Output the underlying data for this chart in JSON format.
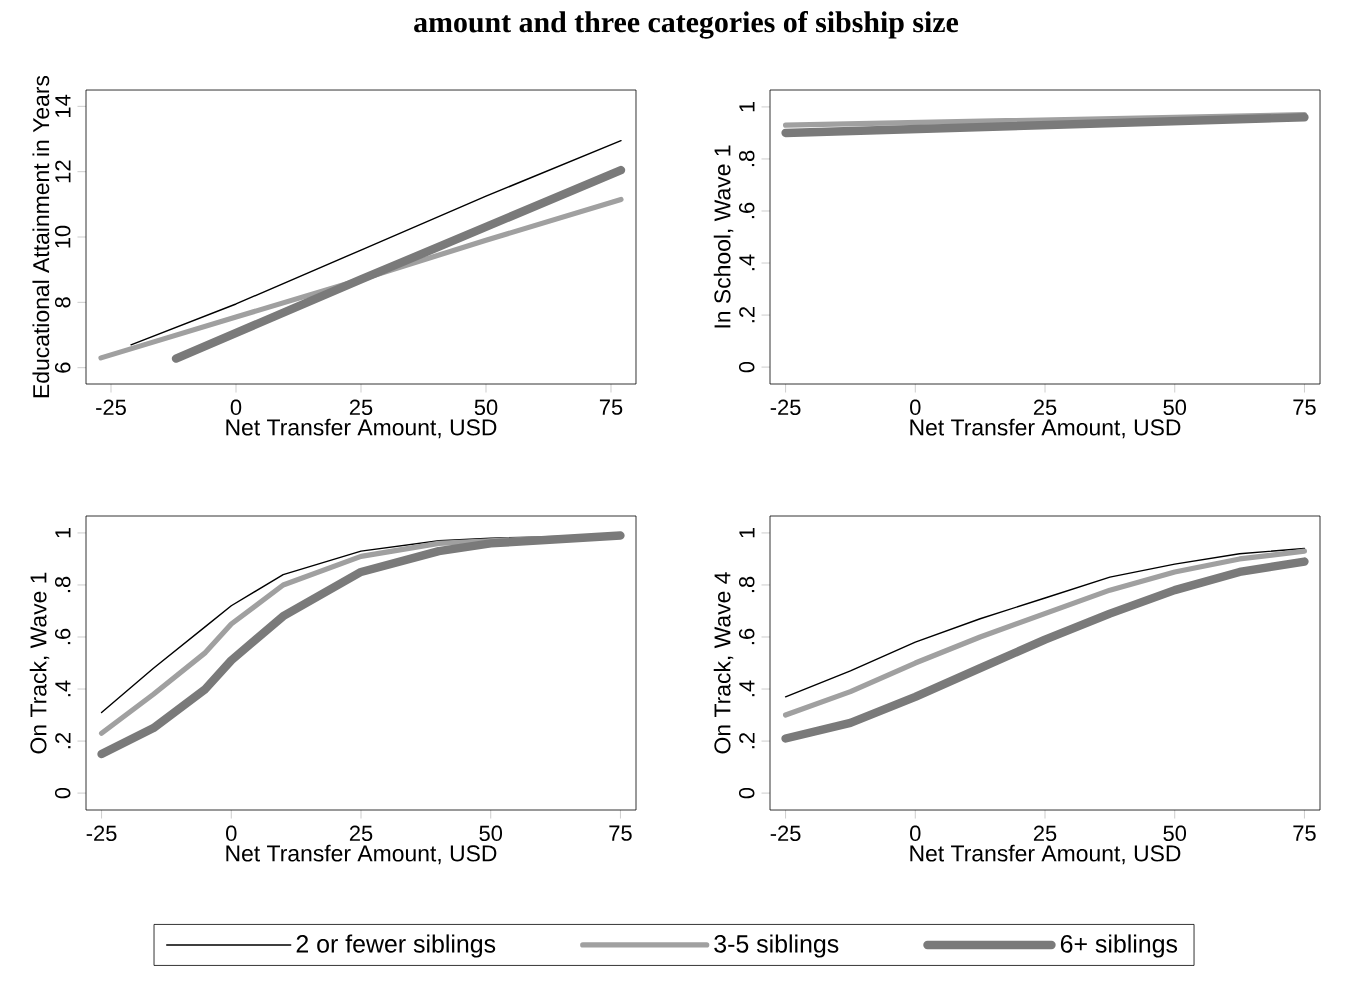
{
  "chart_data": [
    {
      "type": "line",
      "title": "amount and three categories of sibship size",
      "xlabel": "Net Transfer Amount, USD",
      "ylabel": "Educational Attainment in Years",
      "xlim": [
        -30,
        80
      ],
      "xticks": [
        -25,
        0,
        25,
        50,
        75
      ],
      "ylim": [
        5.5,
        14.5
      ],
      "yticks": [
        6,
        8,
        10,
        12,
        14
      ],
      "series": [
        {
          "color": "#000000",
          "x": [
            -21,
            0,
            25,
            50,
            77
          ],
          "values": [
            6.7,
            7.95,
            9.6,
            11.25,
            12.95
          ]
        },
        {
          "color": "#a0a0a0",
          "x": [
            -27,
            0,
            25,
            50,
            77
          ],
          "values": [
            6.3,
            7.55,
            8.7,
            9.9,
            11.15
          ]
        },
        {
          "color": "#7a7a7a",
          "x": [
            -12,
            25,
            77
          ],
          "values": [
            6.28,
            8.7,
            12.05
          ]
        }
      ]
    },
    {
      "type": "line",
      "xlabel": "Net Transfer Amount, USD",
      "ylabel": "In School, Wave 1",
      "xlim": [
        -28,
        78
      ],
      "xticks": [
        -25,
        0,
        25,
        50,
        75
      ],
      "ylim": [
        -0.065,
        1.065
      ],
      "yticks": [
        0,
        {
          "value": 0.2,
          "label": ".2"
        },
        {
          "value": 0.4,
          "label": ".4"
        },
        {
          "value": 0.6,
          "label": ".6"
        },
        {
          "value": 0.8,
          "label": ".8"
        },
        1
      ],
      "series": [
        {
          "color": "#a0a0a0",
          "x": [
            -25,
            75
          ],
          "values": [
            0.93,
            0.97
          ]
        },
        {
          "color": "#7a7a7a",
          "x": [
            -25,
            75
          ],
          "values": [
            0.9,
            0.96
          ]
        }
      ]
    },
    {
      "type": "line",
      "xlabel": "Net Transfer Amount, USD",
      "ylabel": "On Track, Wave 1",
      "xlim": [
        -28,
        78
      ],
      "xticks": [
        -25,
        0,
        25,
        50,
        75
      ],
      "ylim": [
        -0.065,
        1.065
      ],
      "yticks": [
        0,
        {
          "value": 0.2,
          "label": ".2"
        },
        {
          "value": 0.4,
          "label": ".4"
        },
        {
          "value": 0.6,
          "label": ".6"
        },
        {
          "value": 0.8,
          "label": ".8"
        },
        1
      ],
      "series": [
        {
          "color": "#000000",
          "x": [
            -25,
            -15,
            -5,
            0,
            10,
            25,
            40,
            50,
            75
          ],
          "values": [
            0.31,
            0.48,
            0.64,
            0.72,
            0.84,
            0.93,
            0.97,
            0.98,
            0.99
          ]
        },
        {
          "color": "#a0a0a0",
          "x": [
            -25,
            -15,
            -5,
            0,
            10,
            25,
            40,
            50,
            75
          ],
          "values": [
            0.23,
            0.38,
            0.54,
            0.65,
            0.8,
            0.91,
            0.96,
            0.97,
            0.99
          ]
        },
        {
          "color": "#7a7a7a",
          "x": [
            -25,
            -15,
            -5,
            0,
            10,
            25,
            40,
            50,
            75
          ],
          "values": [
            0.15,
            0.25,
            0.4,
            0.51,
            0.68,
            0.85,
            0.93,
            0.96,
            0.99
          ]
        }
      ]
    },
    {
      "type": "line",
      "xlabel": "Net Transfer Amount, USD",
      "ylabel": "On Track, Wave 4",
      "xlim": [
        -28,
        78
      ],
      "xticks": [
        -25,
        0,
        25,
        50,
        75
      ],
      "ylim": [
        -0.065,
        1.065
      ],
      "yticks": [
        0,
        {
          "value": 0.2,
          "label": ".2"
        },
        {
          "value": 0.4,
          "label": ".4"
        },
        {
          "value": 0.6,
          "label": ".6"
        },
        {
          "value": 0.8,
          "label": ".8"
        },
        1
      ],
      "legend": "bottom",
      "series": [
        {
          "name": "2 or fewer siblings",
          "color": "#000000",
          "x": [
            -25,
            -12.5,
            0,
            12.5,
            25,
            37.5,
            50,
            62.5,
            75
          ],
          "values": [
            0.37,
            0.47,
            0.58,
            0.67,
            0.75,
            0.83,
            0.88,
            0.92,
            0.94
          ]
        },
        {
          "name": "3-5 siblings",
          "color": "#a0a0a0",
          "x": [
            -25,
            -12.5,
            0,
            12.5,
            25,
            37.5,
            50,
            62.5,
            75
          ],
          "values": [
            0.3,
            0.39,
            0.5,
            0.6,
            0.69,
            0.78,
            0.85,
            0.9,
            0.93
          ]
        },
        {
          "name": "6+ siblings",
          "color": "#7a7a7a",
          "x": [
            -25,
            -12.5,
            0,
            12.5,
            25,
            37.5,
            50,
            62.5,
            75
          ],
          "values": [
            0.21,
            0.27,
            0.37,
            0.48,
            0.59,
            0.69,
            0.78,
            0.85,
            0.89
          ]
        }
      ]
    }
  ]
}
